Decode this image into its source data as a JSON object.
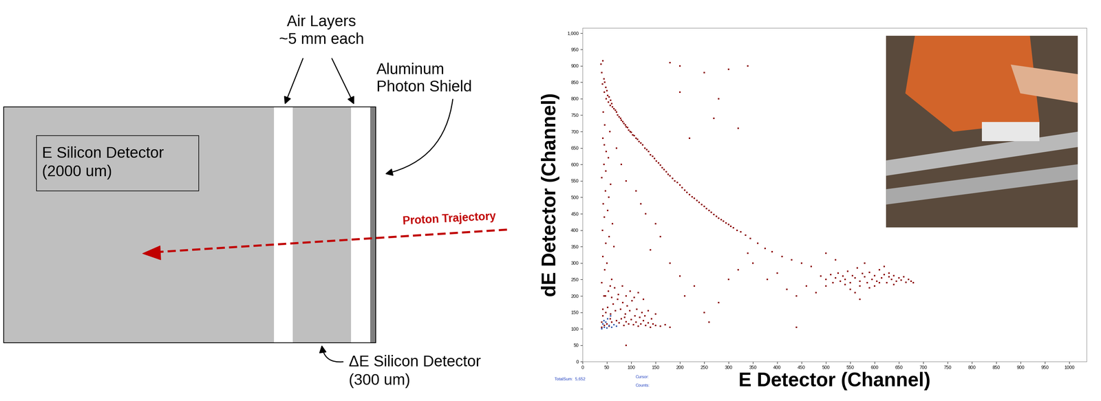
{
  "diagram": {
    "air_layers": "Air Layers\n~5 mm each",
    "aluminum": "Aluminum\nPhoton Shield",
    "e_detector": "E Silicon Detector\n(2000 um)",
    "de_detector": "ΔE Silicon Detector\n(300 um)",
    "proton": "Proton Trajectory"
  },
  "status": {
    "total_sum": "TotalSum:  5,652",
    "cursor": "Cursor:",
    "counts": "Counts:"
  },
  "chart_data": {
    "type": "scatter",
    "x_label": "E Detector (Channel)",
    "y_label": "dE Detector (Channel)",
    "xlim": [
      0,
      1036
    ],
    "ylim": [
      0,
      1015
    ],
    "xticks": [
      0,
      50,
      100,
      150,
      200,
      250,
      300,
      350,
      400,
      450,
      500,
      550,
      600,
      650,
      700,
      750,
      800,
      850,
      900,
      950,
      1000
    ],
    "yticks": [
      0,
      50,
      100,
      150,
      200,
      250,
      300,
      350,
      400,
      450,
      500,
      550,
      600,
      650,
      700,
      750,
      800,
      850,
      900,
      950,
      {
        "value": 1000,
        "label": "1,000"
      }
    ],
    "grid": false,
    "marker": "square",
    "series": [
      {
        "color": "#8b0000",
        "x": [
          38,
          42,
          40,
          44,
          41,
          46,
          48,
          45,
          50,
          52,
          49,
          55,
          53,
          58,
          57,
          60,
          62,
          65,
          68,
          70,
          72,
          75,
          78,
          80,
          83,
          85,
          88,
          90,
          93,
          95,
          98,
          100,
          103,
          106,
          110,
          113,
          116,
          120,
          124,
          128,
          132,
          136,
          140,
          144,
          148,
          152,
          156,
          160,
          164,
          168,
          172,
          176,
          180,
          185,
          190,
          195,
          200,
          205,
          210,
          215,
          220,
          225,
          230,
          235,
          240,
          245,
          250,
          255,
          260,
          265,
          270,
          275,
          280,
          285,
          290,
          295,
          300,
          305,
          310,
          318,
          325,
          335,
          345,
          360,
          375,
          390,
          410,
          430,
          450,
          470,
          490,
          500,
          510,
          515,
          520,
          525,
          530,
          535,
          540,
          545,
          550,
          555,
          560,
          565,
          570,
          575,
          580,
          585,
          590,
          595,
          600,
          605,
          610,
          615,
          620,
          625,
          630,
          635,
          640,
          645,
          650,
          655,
          660,
          665,
          670,
          675,
          680,
          600,
          620,
          580,
          550,
          560,
          590,
          630,
          570,
          610,
          640,
          540,
          500,
          480,
          40,
          42,
          44,
          40,
          46,
          42,
          48,
          41,
          45,
          43,
          47,
          40,
          44,
          49,
          42,
          46,
          43,
          50,
          55,
          52,
          58,
          53,
          56,
          60,
          62,
          65,
          57,
          54,
          48,
          45,
          40,
          45,
          50,
          55,
          60,
          65,
          70,
          75,
          80,
          85,
          90,
          95,
          100,
          105,
          110,
          115,
          120,
          125,
          130,
          135,
          140,
          145,
          150,
          160,
          170,
          180,
          42,
          48,
          52,
          58,
          63,
          68,
          72,
          78,
          83,
          88,
          92,
          97,
          102,
          108,
          112,
          118,
          122,
          128,
          135,
          142,
          150,
          47,
          53,
          60,
          66,
          74,
          82,
          90,
          98,
          106,
          115,
          125,
          57,
          87,
          70,
          80,
          90,
          110,
          120,
          130,
          150,
          160,
          140,
          180,
          200,
          210,
          230,
          250,
          260,
          280,
          300,
          320,
          340,
          350,
          180,
          200,
          250,
          300,
          340,
          220,
          270,
          320,
          280,
          200,
          380,
          400,
          420,
          440,
          460,
          440,
          500,
          520,
          570,
          90
        ],
        "values": [
          905,
          915,
          880,
          860,
          845,
          850,
          835,
          820,
          825,
          810,
          800,
          805,
          790,
          795,
          780,
          785,
          775,
          770,
          765,
          760,
          750,
          745,
          740,
          735,
          730,
          725,
          720,
          715,
          712,
          705,
          700,
          698,
          690,
          688,
          680,
          676,
          670,
          665,
          660,
          650,
          645,
          640,
          630,
          625,
          618,
          610,
          605,
          598,
          590,
          585,
          578,
          570,
          565,
          558,
          550,
          545,
          538,
          530,
          522,
          515,
          508,
          502,
          497,
          490,
          485,
          478,
          472,
          466,
          460,
          455,
          448,
          442,
          437,
          432,
          428,
          422,
          418,
          412,
          408,
          400,
          395,
          385,
          375,
          360,
          345,
          335,
          320,
          310,
          300,
          290,
          260,
          250,
          265,
          240,
          255,
          270,
          245,
          260,
          250,
          275,
          240,
          262,
          255,
          285,
          245,
          268,
          258,
          240,
          272,
          250,
          262,
          245,
          280,
          255,
          265,
          240,
          258,
          250,
          262,
          245,
          255,
          248,
          258,
          242,
          250,
          245,
          240,
          230,
          290,
          300,
          220,
          210,
          225,
          270,
          230,
          240,
          235,
          235,
          230,
          210,
          120,
          160,
          200,
          240,
          280,
          320,
          360,
          400,
          440,
          480,
          520,
          560,
          600,
          640,
          680,
          720,
          760,
          300,
          380,
          460,
          540,
          620,
          700,
          250,
          420,
          350,
          230,
          500,
          580,
          660,
          105,
          110,
          115,
          108,
          120,
          112,
          125,
          118,
          130,
          110,
          122,
          115,
          128,
          112,
          120,
          108,
          115,
          125,
          110,
          118,
          105,
          115,
          110,
          108,
          112,
          105,
          140,
          150,
          165,
          145,
          175,
          155,
          190,
          160,
          180,
          145,
          170,
          155,
          185,
          140,
          160,
          135,
          150,
          140,
          155,
          130,
          145,
          200,
          215,
          195,
          225,
          205,
          230,
          200,
          215,
          195,
          210,
          190,
          130,
          135,
          650,
          600,
          550,
          520,
          480,
          450,
          420,
          380,
          340,
          300,
          260,
          200,
          230,
          150,
          120,
          180,
          250,
          280,
          330,
          300,
          910,
          900,
          880,
          890,
          900,
          680,
          740,
          710,
          800,
          820,
          250,
          270,
          220,
          200,
          230,
          105,
          330,
          310,
          190,
          50
        ]
      },
      {
        "color": "#3a5fb0",
        "x": [
          40,
          45,
          50,
          55,
          42,
          48,
          60,
          65,
          52,
          44,
          58,
          70
        ],
        "values": [
          100,
          105,
          102,
          110,
          115,
          120,
          105,
          112,
          130,
          125,
          140,
          108
        ]
      }
    ]
  }
}
